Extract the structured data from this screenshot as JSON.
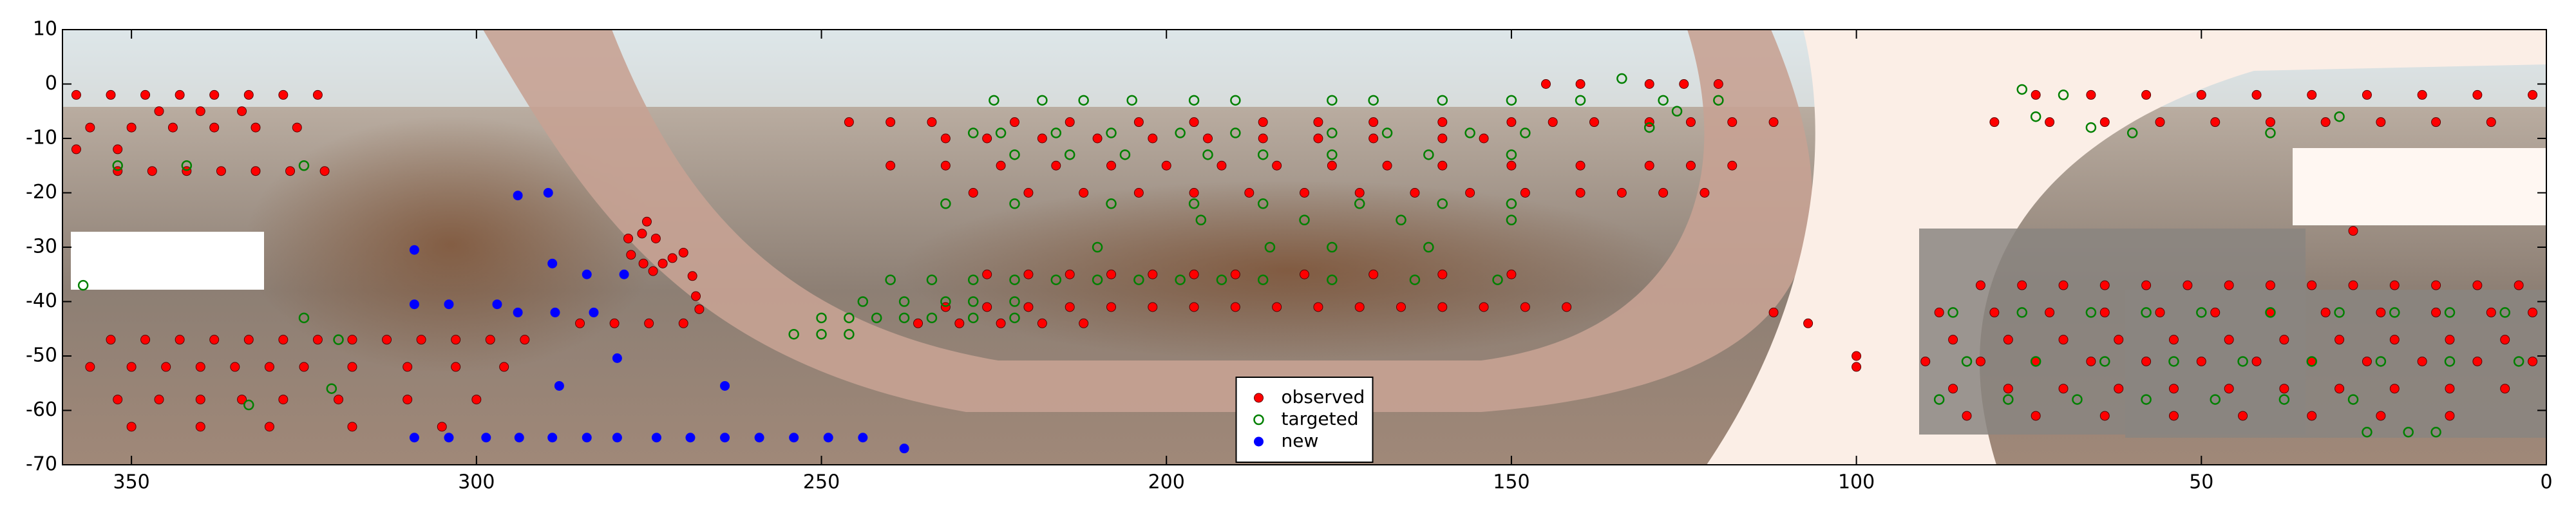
{
  "chart_data": {
    "type": "scatter",
    "xlim": [
      360,
      0
    ],
    "ylim": [
      -70,
      10
    ],
    "xticks": [
      350,
      300,
      250,
      200,
      150,
      100,
      50,
      0
    ],
    "yticks": [
      10,
      0,
      -10,
      -20,
      -30,
      -40,
      -50,
      -60,
      -70
    ],
    "legend": "lower center",
    "series": [
      {
        "name": "observed",
        "color": "#ff0000",
        "marker": "filled",
        "x": [
          358,
          353,
          348,
          343,
          338,
          333,
          328,
          323,
          346,
          340,
          334,
          356,
          350,
          344,
          338,
          332,
          326,
          358,
          352,
          352,
          347,
          342,
          337,
          332,
          327,
          322,
          353,
          348,
          343,
          338,
          333,
          328,
          323,
          318,
          313,
          308,
          303,
          298,
          293,
          356,
          350,
          345,
          340,
          335,
          330,
          325,
          318,
          310,
          303,
          296,
          352,
          346,
          340,
          334,
          328,
          320,
          310,
          300,
          350,
          340,
          330,
          318,
          305,
          275.3,
          276,
          278,
          277.6,
          275.8,
          274.4,
          273,
          271.6,
          270,
          268.7,
          268.2,
          267.7,
          274,
          285,
          280,
          275,
          270,
          246,
          240,
          234,
          222,
          214,
          204,
          196,
          186,
          178,
          170,
          160,
          150,
          144,
          138,
          130,
          124,
          118,
          112,
          232,
          226,
          218,
          210,
          202,
          194,
          186,
          178,
          170,
          160,
          154,
          240,
          232,
          224,
          216,
          208,
          200,
          192,
          184,
          176,
          168,
          160,
          150,
          140,
          130,
          124,
          118,
          228,
          220,
          212,
          204,
          196,
          188,
          180,
          172,
          164,
          156,
          148,
          140,
          134,
          128,
          122,
          226,
          220,
          214,
          208,
          202,
          196,
          190,
          180,
          170,
          160,
          150,
          232,
          226,
          220,
          214,
          208,
          202,
          196,
          190,
          184,
          178,
          172,
          166,
          160,
          154,
          148,
          142,
          236,
          230,
          224,
          218,
          212,
          145,
          140,
          130,
          125,
          120,
          82,
          76,
          70,
          64,
          58,
          52,
          46,
          40,
          34,
          28,
          22,
          16,
          10,
          4,
          88,
          80,
          72,
          64,
          56,
          48,
          40,
          32,
          24,
          16,
          8,
          2,
          86,
          78,
          70,
          62,
          54,
          46,
          38,
          30,
          22,
          14,
          6,
          90,
          82,
          74,
          66,
          58,
          50,
          42,
          34,
          26,
          18,
          10,
          2,
          86,
          78,
          70,
          62,
          54,
          46,
          38,
          30,
          22,
          14,
          6,
          84,
          74,
          64,
          54,
          44,
          34,
          24,
          14,
          74,
          66,
          58,
          50,
          42,
          34,
          26,
          18,
          10,
          2,
          80,
          72,
          64,
          56,
          48,
          40,
          32,
          24,
          16,
          8,
          100,
          100,
          107,
          112,
          28
        ],
        "values": [
          -2,
          -2,
          -2,
          -2,
          -2,
          -2,
          -2,
          -2,
          -5,
          -5,
          -5,
          -8,
          -8,
          -8,
          -8,
          -8,
          -8,
          -12,
          -12,
          -16,
          -16,
          -16,
          -16,
          -16,
          -16,
          -16,
          -47,
          -47,
          -47,
          -47,
          -47,
          -47,
          -47,
          -47,
          -47,
          -47,
          -47,
          -47,
          -47,
          -52,
          -52,
          -52,
          -52,
          -52,
          -52,
          -52,
          -52,
          -52,
          -52,
          -52,
          -58,
          -58,
          -58,
          -58,
          -58,
          -58,
          -58,
          -58,
          -63,
          -63,
          -63,
          -63,
          -63,
          -25.3,
          -27.5,
          -28.4,
          -31.4,
          -33,
          -34.4,
          -33,
          -32,
          -31,
          -35.3,
          -39,
          -41.4,
          -28.4,
          -44,
          -44,
          -44,
          -44,
          -7,
          -7,
          -7,
          -7,
          -7,
          -7,
          -7,
          -7,
          -7,
          -7,
          -7,
          -7,
          -7,
          -7,
          -7,
          -7,
          -7,
          -7,
          -10,
          -10,
          -10,
          -10,
          -10,
          -10,
          -10,
          -10,
          -10,
          -10,
          -10,
          -15,
          -15,
          -15,
          -15,
          -15,
          -15,
          -15,
          -15,
          -15,
          -15,
          -15,
          -15,
          -15,
          -15,
          -15,
          -15,
          -20,
          -20,
          -20,
          -20,
          -20,
          -20,
          -20,
          -20,
          -20,
          -20,
          -20,
          -20,
          -20,
          -20,
          -20,
          -35,
          -35,
          -35,
          -35,
          -35,
          -35,
          -35,
          -35,
          -35,
          -35,
          -35,
          -41,
          -41,
          -41,
          -41,
          -41,
          -41,
          -41,
          -41,
          -41,
          -41,
          -41,
          -41,
          -41,
          -41,
          -41,
          -41,
          -44,
          -44,
          -44,
          -44,
          -44,
          0,
          0,
          0,
          0,
          0,
          -37,
          -37,
          -37,
          -37,
          -37,
          -37,
          -37,
          -37,
          -37,
          -37,
          -37,
          -37,
          -37,
          -37,
          -42,
          -42,
          -42,
          -42,
          -42,
          -42,
          -42,
          -42,
          -42,
          -42,
          -42,
          -42,
          -47,
          -47,
          -47,
          -47,
          -47,
          -47,
          -47,
          -47,
          -47,
          -47,
          -47,
          -51,
          -51,
          -51,
          -51,
          -51,
          -51,
          -51,
          -51,
          -51,
          -51,
          -51,
          -51,
          -56,
          -56,
          -56,
          -56,
          -56,
          -56,
          -56,
          -56,
          -56,
          -56,
          -56,
          -61,
          -61,
          -61,
          -61,
          -61,
          -61,
          -61,
          -61,
          -2,
          -2,
          -2,
          -2,
          -2,
          -2,
          -2,
          -2,
          -2,
          -2,
          -7,
          -7,
          -7,
          -7,
          -7,
          -7,
          -7,
          -7,
          -7,
          -7,
          -50,
          -52,
          -44,
          -42,
          -27
        ]
      },
      {
        "name": "targeted",
        "color": "#008000",
        "marker": "open",
        "x": [
          357,
          352,
          342,
          325,
          333,
          325,
          321,
          320,
          225,
          218,
          212,
          205,
          196,
          190,
          176,
          170,
          160,
          150,
          140,
          128,
          228,
          224,
          216,
          208,
          198,
          190,
          176,
          168,
          156,
          148,
          222,
          214,
          206,
          194,
          186,
          176,
          162,
          150,
          232,
          222,
          208,
          196,
          186,
          172,
          160,
          150,
          195,
          180,
          166,
          150,
          210,
          185,
          176,
          162,
          240,
          234,
          228,
          222,
          216,
          210,
          204,
          198,
          192,
          186,
          176,
          164,
          152,
          244,
          238,
          232,
          228,
          222,
          250,
          246,
          242,
          238,
          234,
          228,
          222,
          254,
          250,
          246,
          134,
          126,
          130,
          120,
          76,
          74,
          66,
          60,
          40,
          30,
          70,
          86,
          76,
          66,
          58,
          50,
          40,
          30,
          22,
          14,
          6,
          84,
          74,
          64,
          54,
          44,
          34,
          24,
          14,
          4,
          88,
          78,
          68,
          58,
          48,
          38,
          28,
          26,
          20,
          16
        ],
        "values": [
          -37,
          -15,
          -15,
          -15,
          -59,
          -43,
          -56,
          -47,
          -3,
          -3,
          -3,
          -3,
          -3,
          -3,
          -3,
          -3,
          -3,
          -3,
          -3,
          -3,
          -9,
          -9,
          -9,
          -9,
          -9,
          -9,
          -9,
          -9,
          -9,
          -9,
          -13,
          -13,
          -13,
          -13,
          -13,
          -13,
          -13,
          -13,
          -22,
          -22,
          -22,
          -22,
          -22,
          -22,
          -22,
          -22,
          -25,
          -25,
          -25,
          -25,
          -30,
          -30,
          -30,
          -30,
          -36,
          -36,
          -36,
          -36,
          -36,
          -36,
          -36,
          -36,
          -36,
          -36,
          -36,
          -36,
          -36,
          -40,
          -40,
          -40,
          -40,
          -40,
          -43,
          -43,
          -43,
          -43,
          -43,
          -43,
          -43,
          -46,
          -46,
          -46,
          1,
          -5,
          -8,
          -3,
          -1,
          -6,
          -8,
          -9,
          -9,
          -6,
          -2,
          -42,
          -42,
          -42,
          -42,
          -42,
          -42,
          -42,
          -42,
          -42,
          -42,
          -51,
          -51,
          -51,
          -51,
          -51,
          -51,
          -51,
          -51,
          -51,
          -58,
          -58,
          -58,
          -58,
          -58,
          -58,
          -58,
          -64,
          -64,
          -64
        ]
      },
      {
        "name": "new",
        "color": "#0000ff",
        "marker": "filled",
        "x": [
          309,
          304,
          298.6,
          293.8,
          289,
          284,
          279.6,
          273.9,
          269,
          264,
          259,
          254,
          249,
          244,
          238,
          294,
          289.6,
          309,
          289,
          284,
          278.6,
          309,
          304,
          297,
          294,
          288.6,
          283,
          279.6,
          288,
          264
        ],
        "values": [
          -65,
          -65,
          -65,
          -65,
          -65,
          -65,
          -65,
          -65,
          -65,
          -65,
          -65,
          -65,
          -65,
          -65,
          -67,
          -20.5,
          -20,
          -30.5,
          -33,
          -35,
          -35,
          -40.5,
          -40.5,
          -40.5,
          -42,
          -42,
          -42,
          -50.4,
          -55.5,
          -55.5
        ]
      }
    ]
  }
}
